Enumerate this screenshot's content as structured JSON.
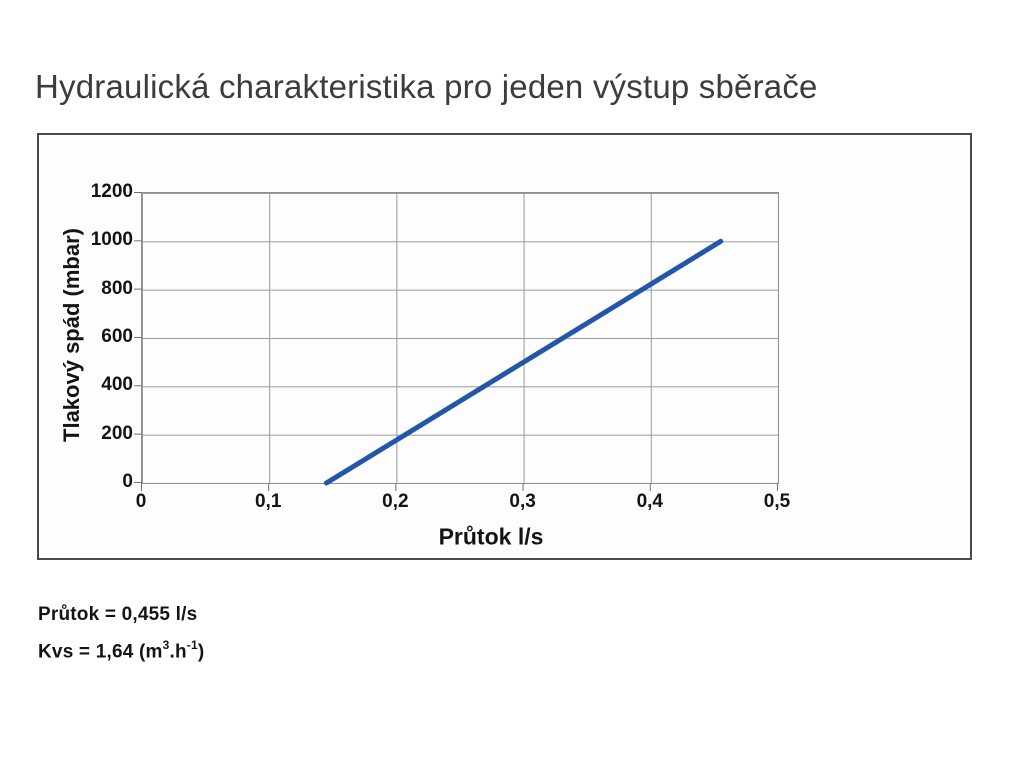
{
  "title": "Hydraulická charakteristika pro jeden výstup sběrače",
  "chart_data": {
    "type": "line",
    "title": "",
    "xlabel": "Průtok l/s",
    "ylabel": "Tlakový spád (mbar)",
    "xlim": [
      0,
      0.5
    ],
    "ylim": [
      0,
      1200
    ],
    "grid": true,
    "legend": "none",
    "x_ticks": [
      0,
      0.1,
      0.2,
      0.3,
      0.4,
      0.5
    ],
    "x_tick_labels": [
      "0",
      "0,1",
      "0,2",
      "0,3",
      "0,4",
      "0,5"
    ],
    "y_ticks": [
      1200,
      1000,
      800,
      600,
      400,
      200,
      0
    ],
    "y_tick_labels": [
      "1200",
      "1000",
      "800",
      "600",
      "400",
      "200",
      "0"
    ],
    "series": [
      {
        "name": "hydraulic-characteristic",
        "color": "#2456a8",
        "width": 5,
        "points": [
          [
            0.145,
            0
          ],
          [
            0.455,
            1000
          ]
        ]
      }
    ]
  },
  "annotations": {
    "flow": "Průtok = 0,455 l/s",
    "kvs": {
      "p1": "Kvs = 1,64 (m",
      "sup1": "3",
      "p2": ".h",
      "sup2": "-1",
      "p3": ")"
    }
  },
  "colors": {
    "line": "#2456a8",
    "grid": "#9a9a9a",
    "frame_border": "#4a4a4a",
    "axis_text": "#141414",
    "title_text": "#3c3c3c"
  }
}
